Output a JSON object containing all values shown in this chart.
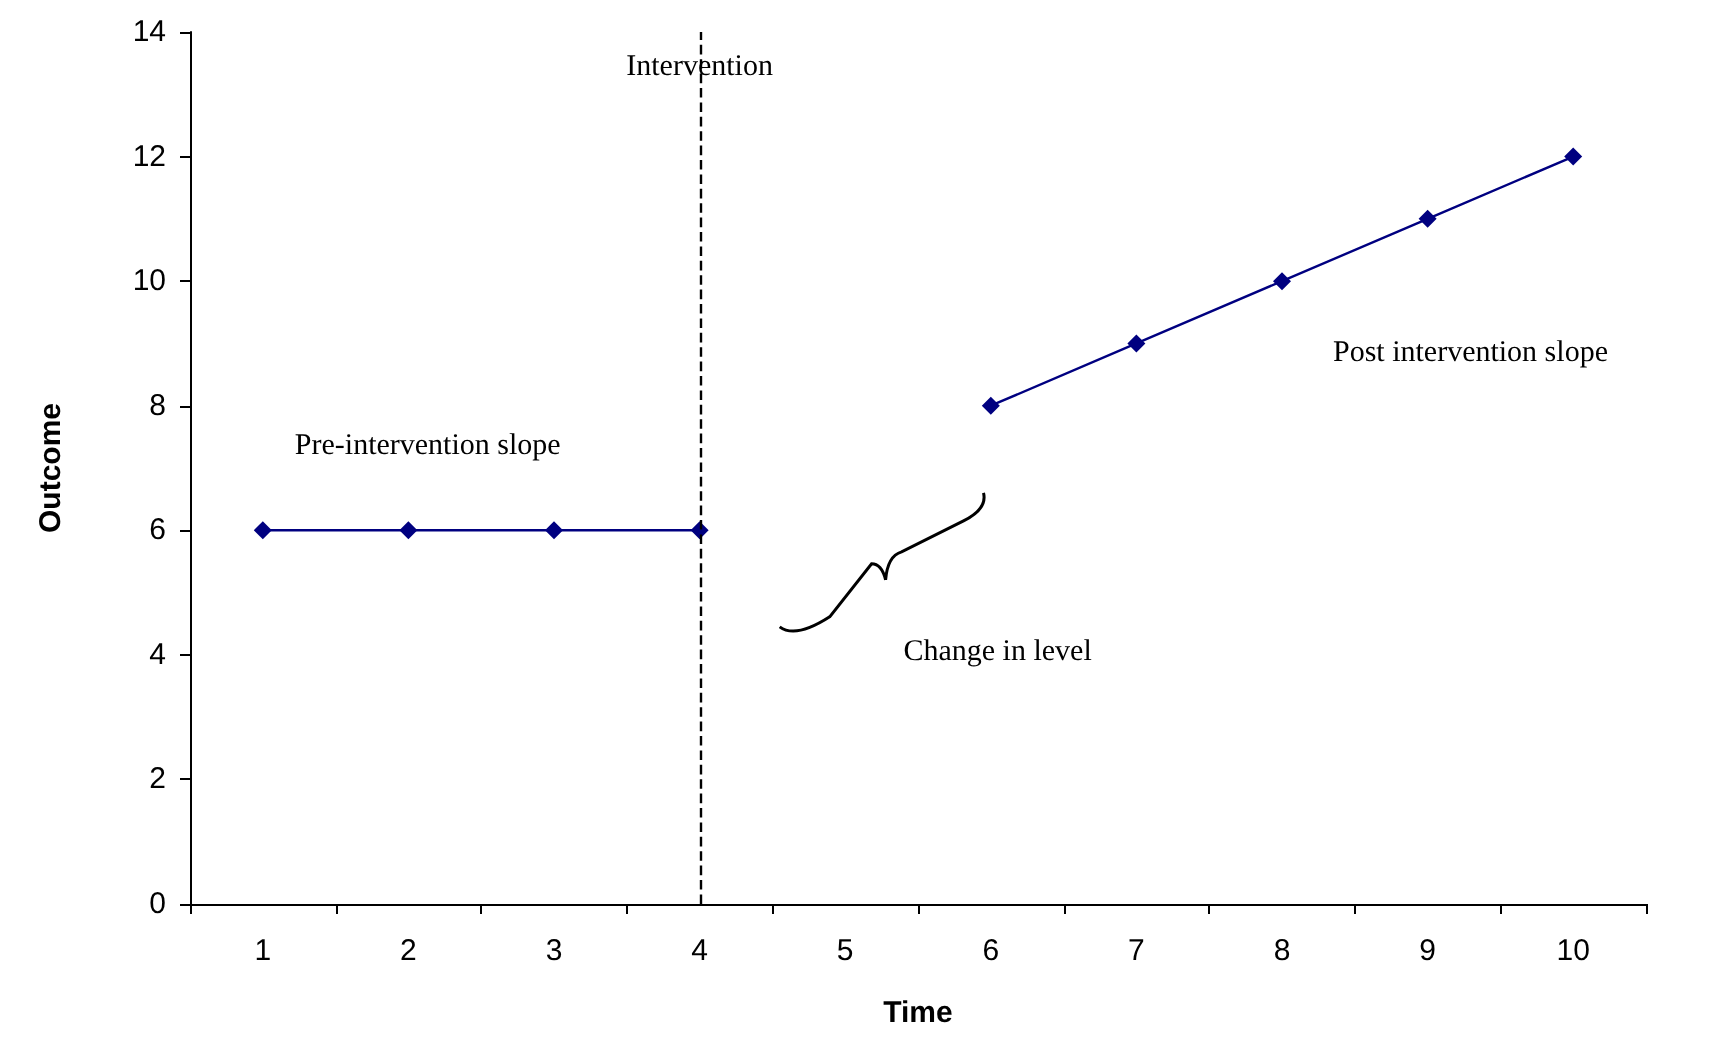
{
  "chart_data": {
    "type": "line",
    "xlabel": "Time",
    "ylabel": "Outcome",
    "categories": [
      "1",
      "2",
      "3",
      "4",
      "5",
      "6",
      "7",
      "8",
      "9",
      "10"
    ],
    "series": [
      {
        "color": "#000080",
        "values": [
          6,
          6,
          6,
          6,
          null,
          8,
          9,
          10,
          11,
          12
        ]
      }
    ],
    "ylim": [
      0,
      14
    ],
    "yticks": [
      0,
      2,
      4,
      6,
      8,
      10,
      12,
      14
    ],
    "grid": false,
    "marker": "diamond",
    "line_style": "solid",
    "ref_lines": [
      {
        "axis": "x",
        "value": "4",
        "label": "Intervention",
        "line_style": "dashed",
        "color": "#000000"
      }
    ],
    "annotations": [
      "Pre-intervention slope",
      "Post intervention slope",
      "Change in level"
    ]
  }
}
